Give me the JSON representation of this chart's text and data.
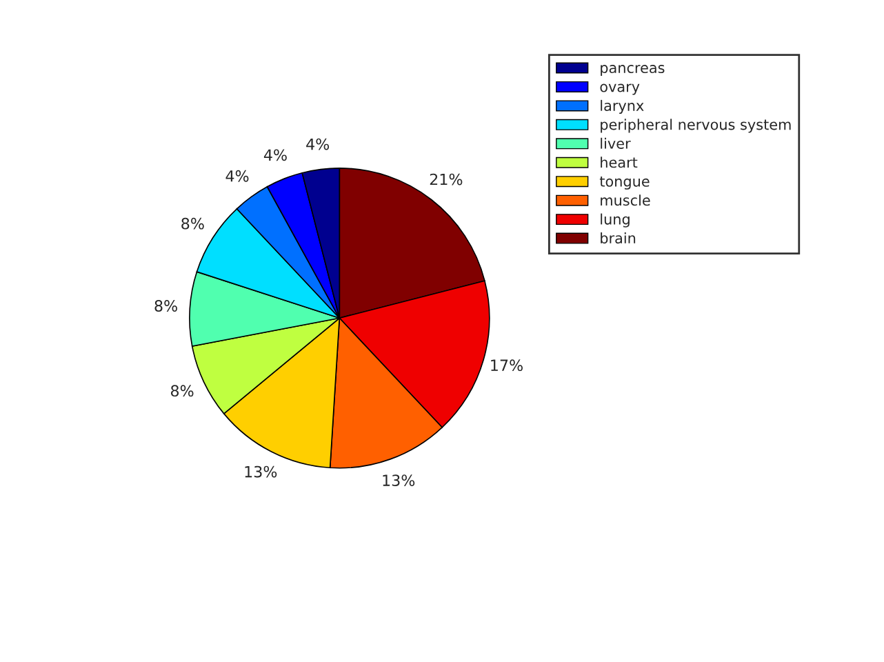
{
  "chart_data": {
    "type": "pie",
    "categories": [
      "pancreas",
      "ovary",
      "larynx",
      "peripheral nervous system",
      "liver",
      "heart",
      "tongue",
      "muscle",
      "lung",
      "brain"
    ],
    "values": [
      4,
      4,
      4,
      8,
      8,
      8,
      13,
      13,
      17,
      21
    ],
    "value_labels": [
      "4%",
      "4%",
      "4%",
      "8%",
      "8%",
      "8%",
      "13%",
      "13%",
      "17%",
      "21%"
    ],
    "colors": [
      "#00008f",
      "#0000ff",
      "#0070ff",
      "#00dfff",
      "#50ffaf",
      "#bfff40",
      "#ffcf00",
      "#ff6000",
      "#ef0000",
      "#800000"
    ],
    "legend": "top right"
  }
}
